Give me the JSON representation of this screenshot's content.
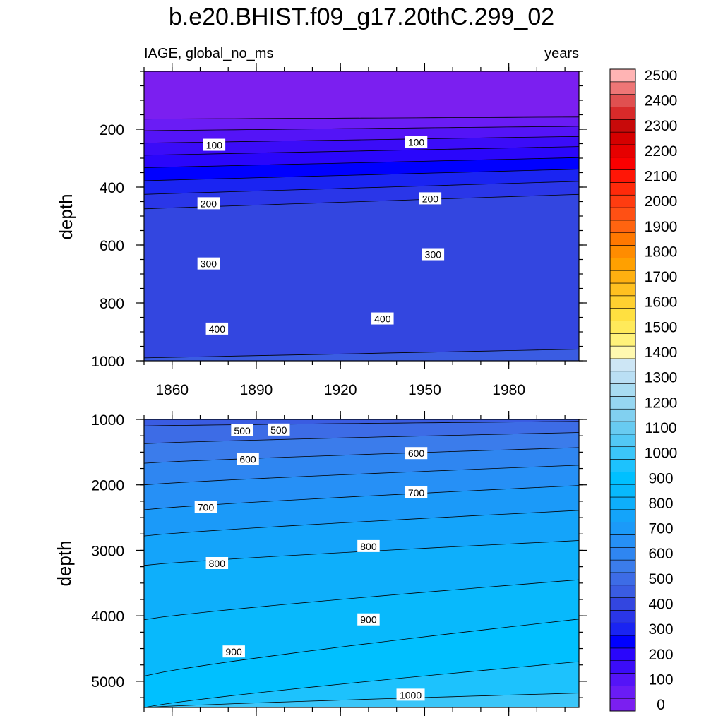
{
  "colors": {
    "levels": [
      "#7b1ff0",
      "#6a1cf5",
      "#5414f7",
      "#3b0cf8",
      "#2a06fb",
      "#0000ff",
      "#1a24f2",
      "#2a36e8",
      "#3346e0",
      "#3a5ce2",
      "#3d6ce6",
      "#3b7ceb",
      "#2f86f1",
      "#2690f6",
      "#1b9af9",
      "#14a4fa",
      "#0eaffb",
      "#08b9fc",
      "#00c0ff",
      "#1dc2fd",
      "#3bc6f9",
      "#52c8f5",
      "#68cbf1",
      "#81d0f0",
      "#96d6f1",
      "#a8dcf2",
      "#badff4",
      "#cde6f5",
      "#fff9b0",
      "#fff27a",
      "#ffea5a",
      "#ffe040",
      "#ffd030",
      "#ffc020",
      "#ffb010",
      "#ffa000",
      "#ff8c00",
      "#ff7800",
      "#ff6410",
      "#ff5014",
      "#ff3c10",
      "#ff2a0a",
      "#ff1606",
      "#fa0000",
      "#e60000",
      "#d50000",
      "#c80a0a",
      "#d82a2a",
      "#e05050",
      "#ee7676",
      "#ffb4b4"
    ]
  },
  "chart_data": [
    {
      "type": "contour",
      "title": "b.e20.BHIST.f09_g17.20thC.299_02",
      "left_string": "IAGE, global_no_ms",
      "right_string": "years",
      "ylabel": "depth",
      "xlim": [
        1850,
        2005
      ],
      "ylim": [
        1000,
        0
      ],
      "x_ticks": [
        1860,
        1890,
        1920,
        1950,
        1980
      ],
      "y_ticks": [
        200,
        400,
        600,
        800,
        1000
      ],
      "contour_interval": 50,
      "contours": [
        {
          "level": 50,
          "depth_at_xlim": [
            165,
            158
          ]
        },
        {
          "level": 100,
          "depth_at_xlim": [
            205,
            190
          ]
        },
        {
          "level": 150,
          "depth_at_xlim": [
            248,
            225
          ]
        },
        {
          "level": 200,
          "depth_at_xlim": [
            290,
            260
          ]
        },
        {
          "level": 250,
          "depth_at_xlim": [
            333,
            298
          ]
        },
        {
          "level": 300,
          "depth_at_xlim": [
            378,
            338
          ]
        },
        {
          "level": 350,
          "depth_at_xlim": [
            425,
            380
          ]
        },
        {
          "level": 400,
          "depth_at_xlim": [
            475,
            425
          ]
        },
        {
          "level": 450,
          "depth_at_xlim": [
            990,
            960
          ]
        }
      ],
      "contour_labels": [
        {
          "text": "100",
          "x": 1875,
          "y": 255
        },
        {
          "text": "100",
          "x": 1947,
          "y": 245
        },
        {
          "text": "200",
          "x": 1873,
          "y": 457
        },
        {
          "text": "200",
          "x": 1952,
          "y": 440
        },
        {
          "text": "300",
          "x": 1873,
          "y": 665
        },
        {
          "text": "300",
          "x": 1953,
          "y": 633
        },
        {
          "text": "400",
          "x": 1876,
          "y": 890
        },
        {
          "text": "400",
          "x": 1935,
          "y": 855
        }
      ]
    },
    {
      "type": "contour",
      "ylabel": "depth",
      "xlim": [
        1850,
        2005
      ],
      "ylim": [
        5400,
        1000
      ],
      "y_ticks": [
        1000,
        2000,
        3000,
        4000,
        5000
      ],
      "contours": [
        {
          "level": 500,
          "depth_at_xlim": [
            1100,
            1030
          ]
        },
        {
          "level": 550,
          "depth_at_xlim": [
            1370,
            1200
          ]
        },
        {
          "level": 600,
          "depth_at_xlim": [
            1670,
            1430
          ]
        },
        {
          "level": 650,
          "depth_at_xlim": [
            2000,
            1700
          ]
        },
        {
          "level": 700,
          "depth_at_xlim": [
            2380,
            2010
          ]
        },
        {
          "level": 750,
          "depth_at_xlim": [
            2780,
            2390
          ]
        },
        {
          "level": 800,
          "depth_at_xlim": [
            3230,
            2850
          ]
        },
        {
          "level": 850,
          "depth_at_xlim": [
            4060,
            3450
          ]
        },
        {
          "level": 900,
          "depth_at_xlim": [
            4920,
            4050
          ]
        },
        {
          "level": 950,
          "depth_at_xlim": [
            5400,
            4700
          ]
        },
        {
          "level": 1000,
          "depth_at_xlim": [
            5400,
            5180
          ]
        }
      ],
      "contour_labels": [
        {
          "text": "500",
          "x": 1885,
          "y": 1170
        },
        {
          "text": "500",
          "x": 1898,
          "y": 1160
        },
        {
          "text": "600",
          "x": 1887,
          "y": 1610
        },
        {
          "text": "600",
          "x": 1947,
          "y": 1520
        },
        {
          "text": "700",
          "x": 1872,
          "y": 2340
        },
        {
          "text": "700",
          "x": 1947,
          "y": 2120
        },
        {
          "text": "800",
          "x": 1876,
          "y": 3200
        },
        {
          "text": "800",
          "x": 1930,
          "y": 2940
        },
        {
          "text": "900",
          "x": 1882,
          "y": 4550
        },
        {
          "text": "900",
          "x": 1930,
          "y": 4060
        },
        {
          "text": "1000",
          "x": 1945,
          "y": 5210
        }
      ]
    }
  ],
  "shared_x_ticks": [
    1860,
    1890,
    1920,
    1950,
    1980
  ],
  "colorbar": {
    "labels": [
      "0",
      "100",
      "200",
      "300",
      "400",
      "500",
      "600",
      "700",
      "800",
      "900",
      "1000",
      "1100",
      "1200",
      "1300",
      "1400",
      "1500",
      "1600",
      "1700",
      "1800",
      "1900",
      "2000",
      "2100",
      "2200",
      "2300",
      "2400",
      "2500"
    ],
    "min": 0,
    "max": 2550,
    "step": 50
  }
}
